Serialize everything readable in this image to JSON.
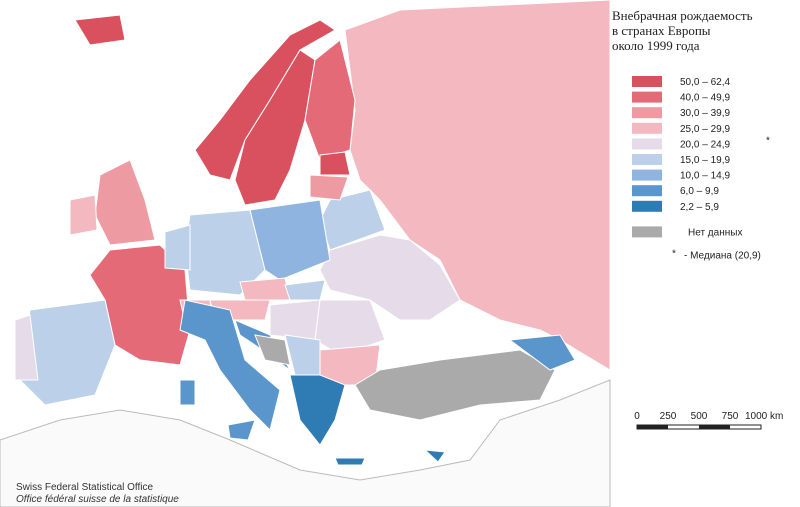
{
  "title": [
    "Внебрачная рождаемость",
    "в странах Европы",
    "около 1999 года"
  ],
  "legend": [
    {
      "label": "50,0  –  62,4",
      "color": "#d9505e"
    },
    {
      "label": "40,0  –  49,9",
      "color": "#e56a77"
    },
    {
      "label": "30,0  –  39,9",
      "color": "#ee9aa2"
    },
    {
      "label": "25,0  –  29,9",
      "color": "#f3b8c0"
    },
    {
      "label": "20,0  –  24,9",
      "color": "#e6dbe8"
    },
    {
      "label": "15,0  –  19,9",
      "color": "#bcd0ea"
    },
    {
      "label": "10,0  –  14,9",
      "color": "#8fb4df"
    },
    {
      "label": "6,0  –  9,9",
      "color": "#5a95cc"
    },
    {
      "label": "2,2  –  5,9",
      "color": "#2f7bb3"
    }
  ],
  "no_data": {
    "label": "Нет данных",
    "color": "#aaaaaa"
  },
  "median_symbol": "*",
  "median": "- Медиана (20,9)",
  "scale": [
    "0",
    "250",
    "500",
    "750",
    "1000 km"
  ],
  "credits": [
    "Swiss Federal Statistical Office",
    "Office fédéral suisse de la statistique"
  ]
}
